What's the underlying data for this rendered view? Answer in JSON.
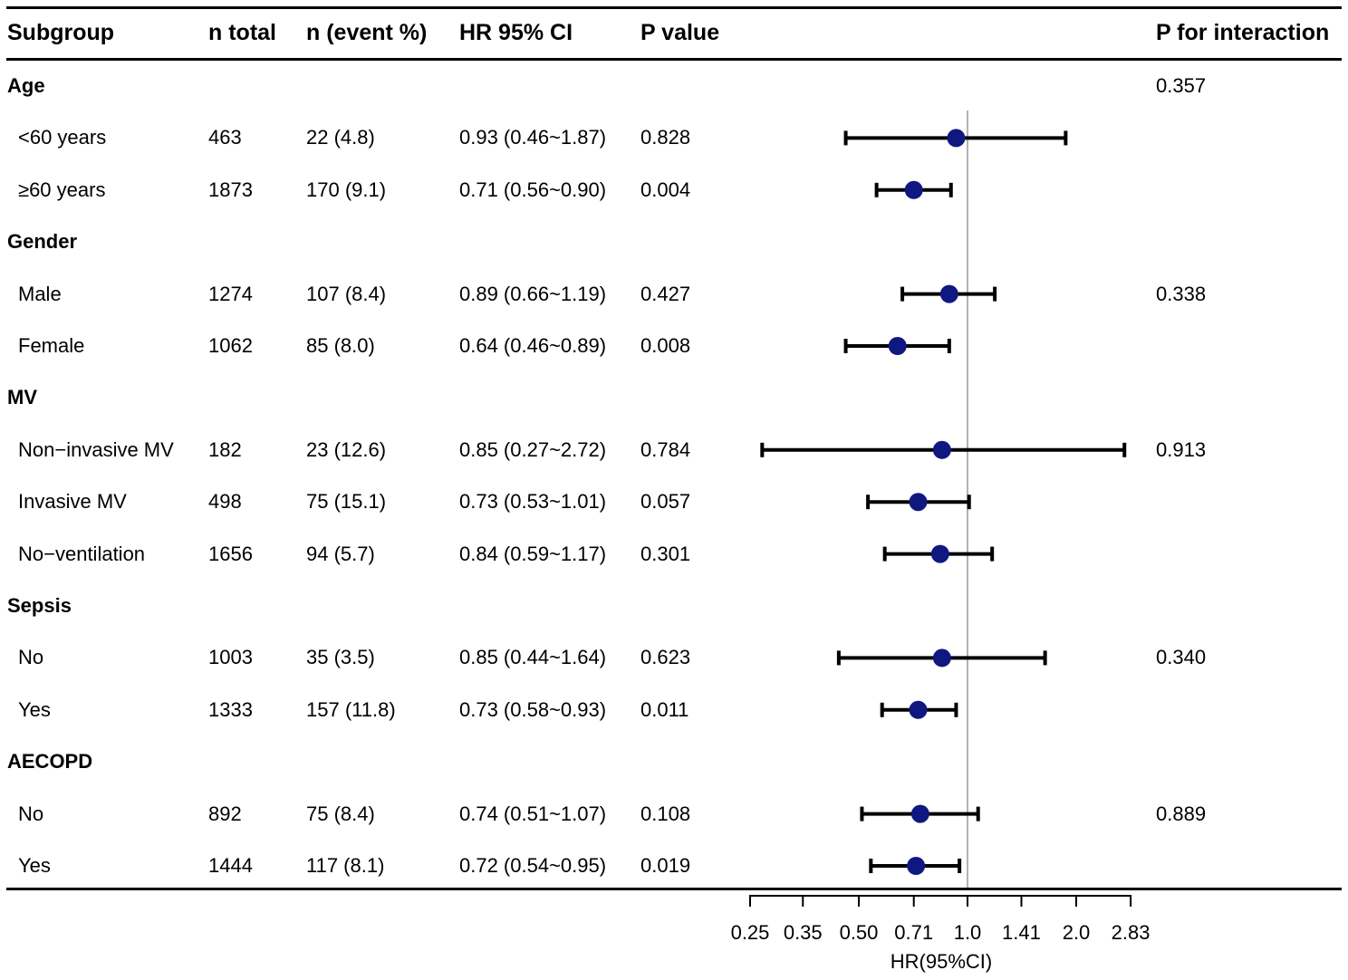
{
  "table": {
    "headers": {
      "subgroup": "Subgroup",
      "n_total": "n total",
      "n_event": "n (event %)",
      "hr": "HR 95% CI",
      "p": "P value",
      "p_interaction": "P for interaction"
    },
    "rows": [
      {
        "kind": "group",
        "label": "Age",
        "p_interaction": "0.357"
      },
      {
        "kind": "sub",
        "label": "<60 years",
        "n_total": "463",
        "n_event": "22 (4.8)",
        "hr_text": "0.93 (0.46~1.87)",
        "p": "0.828",
        "p_interaction": ""
      },
      {
        "kind": "sub",
        "label": "≥60 years",
        "n_total": "1873",
        "n_event": "170 (9.1)",
        "hr_text": "0.71 (0.56~0.90)",
        "p": "0.004",
        "p_interaction": ""
      },
      {
        "kind": "group",
        "label": "Gender",
        "p_interaction": ""
      },
      {
        "kind": "sub",
        "label": "Male",
        "n_total": "1274",
        "n_event": "107 (8.4)",
        "hr_text": "0.89 (0.66~1.19)",
        "p": "0.427",
        "p_interaction": "0.338"
      },
      {
        "kind": "sub",
        "label": "Female",
        "n_total": "1062",
        "n_event": "85 (8.0)",
        "hr_text": "0.64 (0.46~0.89)",
        "p": "0.008",
        "p_interaction": ""
      },
      {
        "kind": "group",
        "label": "MV",
        "p_interaction": ""
      },
      {
        "kind": "sub",
        "label": "Non−invasive MV",
        "n_total": "182",
        "n_event": "23 (12.6)",
        "hr_text": "0.85 (0.27~2.72)",
        "p": "0.784",
        "p_interaction": "0.913"
      },
      {
        "kind": "sub",
        "label": "Invasive MV",
        "n_total": "498",
        "n_event": "75 (15.1)",
        "hr_text": "0.73 (0.53~1.01)",
        "p": "0.057",
        "p_interaction": ""
      },
      {
        "kind": "sub",
        "label": "No−ventilation",
        "n_total": "1656",
        "n_event": "94 (5.7)",
        "hr_text": "0.84 (0.59~1.17)",
        "p": "0.301",
        "p_interaction": ""
      },
      {
        "kind": "group",
        "label": "Sepsis",
        "p_interaction": ""
      },
      {
        "kind": "sub",
        "label": "No",
        "n_total": "1003",
        "n_event": "35 (3.5)",
        "hr_text": "0.85 (0.44~1.64)",
        "p": "0.623",
        "p_interaction": "0.340"
      },
      {
        "kind": "sub",
        "label": "Yes",
        "n_total": "1333",
        "n_event": "157 (11.8)",
        "hr_text": "0.73 (0.58~0.93)",
        "p": "0.011",
        "p_interaction": ""
      },
      {
        "kind": "group",
        "label": "AECOPD",
        "p_interaction": ""
      },
      {
        "kind": "sub",
        "label": "No",
        "n_total": "892",
        "n_event": "75 (8.4)",
        "hr_text": "0.74 (0.51~1.07)",
        "p": "0.108",
        "p_interaction": "0.889"
      },
      {
        "kind": "sub",
        "label": "Yes",
        "n_total": "1444",
        "n_event": "117 (8.1)",
        "hr_text": "0.72 (0.54~0.95)",
        "p": "0.019",
        "p_interaction": ""
      }
    ]
  },
  "chart_data": {
    "type": "forest",
    "xlabel": "HR(95%CI)",
    "scale": "log2",
    "reference_line": 1.0,
    "xlim": [
      0.25,
      2.83
    ],
    "ticks": [
      0.25,
      0.35,
      0.5,
      0.71,
      1.0,
      1.41,
      2.0,
      2.83
    ],
    "tick_labels": [
      "0.25",
      "0.35",
      "0.50",
      "0.71",
      "1.0",
      "1.41",
      "2.0",
      "2.83"
    ],
    "marker_color": "#0f1880",
    "series": [
      {
        "name": "<60 years",
        "hr": 0.93,
        "lower": 0.46,
        "upper": 1.87
      },
      {
        "name": "≥60 years",
        "hr": 0.71,
        "lower": 0.56,
        "upper": 0.9
      },
      {
        "name": "Male",
        "hr": 0.89,
        "lower": 0.66,
        "upper": 1.19
      },
      {
        "name": "Female",
        "hr": 0.64,
        "lower": 0.46,
        "upper": 0.89
      },
      {
        "name": "Non−invasive MV",
        "hr": 0.85,
        "lower": 0.27,
        "upper": 2.72
      },
      {
        "name": "Invasive MV",
        "hr": 0.73,
        "lower": 0.53,
        "upper": 1.01
      },
      {
        "name": "No−ventilation",
        "hr": 0.84,
        "lower": 0.59,
        "upper": 1.17
      },
      {
        "name": "Sepsis No",
        "hr": 0.85,
        "lower": 0.44,
        "upper": 1.64
      },
      {
        "name": "Sepsis Yes",
        "hr": 0.73,
        "lower": 0.58,
        "upper": 0.93
      },
      {
        "name": "AECOPD No",
        "hr": 0.74,
        "lower": 0.51,
        "upper": 1.07
      },
      {
        "name": "AECOPD Yes",
        "hr": 0.72,
        "lower": 0.54,
        "upper": 0.95
      }
    ]
  }
}
